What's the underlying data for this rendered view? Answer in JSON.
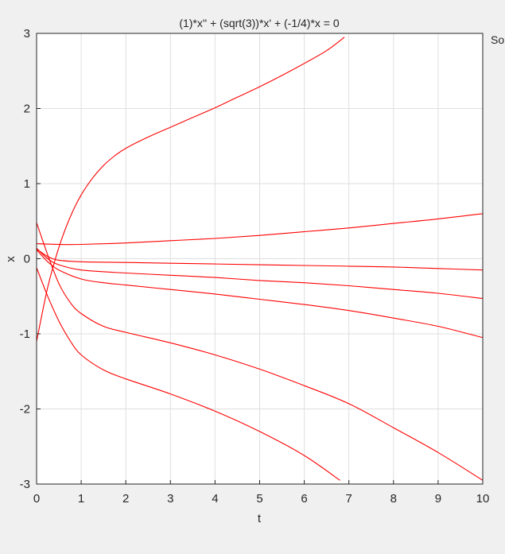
{
  "chart_data": {
    "type": "line",
    "title": "(1)*x'' + (sqrt(3))*x' + (-1/4)*x = 0",
    "xlabel": "t",
    "ylabel": "x",
    "xlim": [
      0,
      10
    ],
    "ylim": [
      -3,
      3
    ],
    "xticks": [
      "0",
      "1",
      "2",
      "3",
      "4",
      "5",
      "6",
      "7",
      "8",
      "9",
      "10"
    ],
    "yticks": [
      "-3",
      "-2",
      "-1",
      "0",
      "1",
      "2",
      "3"
    ],
    "grid": true,
    "line_color": "#ff0000",
    "side_text": "So",
    "series": [
      {
        "x": [
          0,
          0.25,
          0.5,
          0.75,
          1,
          1.25,
          1.5,
          1.75,
          2,
          2.5,
          3,
          3.5,
          4,
          4.5,
          5,
          5.5,
          6,
          6.5,
          6.9
        ],
        "y": [
          -1.1,
          -0.38,
          0.15,
          0.55,
          0.85,
          1.07,
          1.24,
          1.37,
          1.47,
          1.62,
          1.75,
          1.88,
          2.01,
          2.15,
          2.29,
          2.44,
          2.6,
          2.77,
          2.95
        ]
      },
      {
        "x": [
          0,
          0.5,
          1,
          2,
          3,
          4,
          5,
          6,
          7,
          8,
          9,
          10
        ],
        "y": [
          0.2,
          0.19,
          0.19,
          0.21,
          0.24,
          0.27,
          0.31,
          0.36,
          0.41,
          0.47,
          0.53,
          0.6
        ]
      },
      {
        "x": [
          0,
          0.25,
          0.5,
          1,
          2,
          3,
          4,
          5,
          6,
          7,
          8,
          9,
          10
        ],
        "y": [
          0.13,
          0.03,
          -0.02,
          -0.04,
          -0.05,
          -0.06,
          -0.07,
          -0.08,
          -0.09,
          -0.1,
          -0.11,
          -0.13,
          -0.15
        ]
      },
      {
        "x": [
          0,
          0.25,
          0.5,
          1,
          2,
          3,
          4,
          5,
          6,
          7,
          8,
          9,
          10
        ],
        "y": [
          0.14,
          0.0,
          -0.08,
          -0.15,
          -0.19,
          -0.22,
          -0.25,
          -0.29,
          -0.32,
          -0.36,
          -0.41,
          -0.46,
          -0.53
        ]
      },
      {
        "x": [
          0,
          0.25,
          0.5,
          1,
          1.5,
          2,
          3,
          4,
          5,
          6,
          7,
          8,
          9,
          10
        ],
        "y": [
          0.12,
          -0.04,
          -0.15,
          -0.27,
          -0.32,
          -0.35,
          -0.41,
          -0.47,
          -0.54,
          -0.61,
          -0.69,
          -0.79,
          -0.9,
          -1.05
        ]
      },
      {
        "x": [
          0,
          0.25,
          0.5,
          0.75,
          1,
          1.5,
          2,
          3,
          4,
          5,
          6,
          7,
          8,
          9,
          10
        ],
        "y": [
          0.48,
          0.05,
          -0.33,
          -0.58,
          -0.73,
          -0.9,
          -0.98,
          -1.12,
          -1.28,
          -1.47,
          -1.69,
          -1.93,
          -2.25,
          -2.58,
          -2.95
        ]
      },
      {
        "x": [
          0,
          0.25,
          0.5,
          0.75,
          1,
          1.5,
          2,
          3,
          4,
          5,
          6,
          6.8
        ],
        "y": [
          -0.12,
          -0.5,
          -0.83,
          -1.09,
          -1.28,
          -1.48,
          -1.6,
          -1.8,
          -2.03,
          -2.3,
          -2.62,
          -2.95
        ]
      }
    ]
  }
}
